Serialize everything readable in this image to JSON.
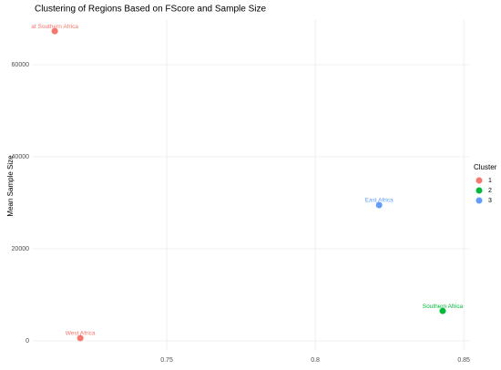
{
  "chart_data": {
    "type": "scatter",
    "title": "Clustering of Regions Based on FScore and Sample Size",
    "y_label": "Mean Sample Size",
    "legend_title": "Cluster",
    "legend": "right",
    "grid": true,
    "xlim": [
      0.7046,
      0.8518
    ],
    "ylim": [
      -2178,
      69703
    ],
    "xticks": [
      0.75,
      0.8,
      0.85
    ],
    "yticks": [
      0,
      20000,
      40000,
      60000
    ],
    "series": [
      {
        "name": "1",
        "color": "#F8766D",
        "x": [
          0.7123,
          0.7209
        ],
        "values": [
          67300,
          600
        ],
        "labels": [
          "at Southern Africa",
          "West Africa"
        ]
      },
      {
        "name": "2",
        "color": "#00BA38",
        "x": [
          0.8429
        ],
        "values": [
          6500
        ],
        "labels": [
          "Southern Africa"
        ]
      },
      {
        "name": "3",
        "color": "#619CFF",
        "x": [
          0.8215
        ],
        "values": [
          29500
        ],
        "labels": [
          "East Africa"
        ]
      }
    ]
  }
}
